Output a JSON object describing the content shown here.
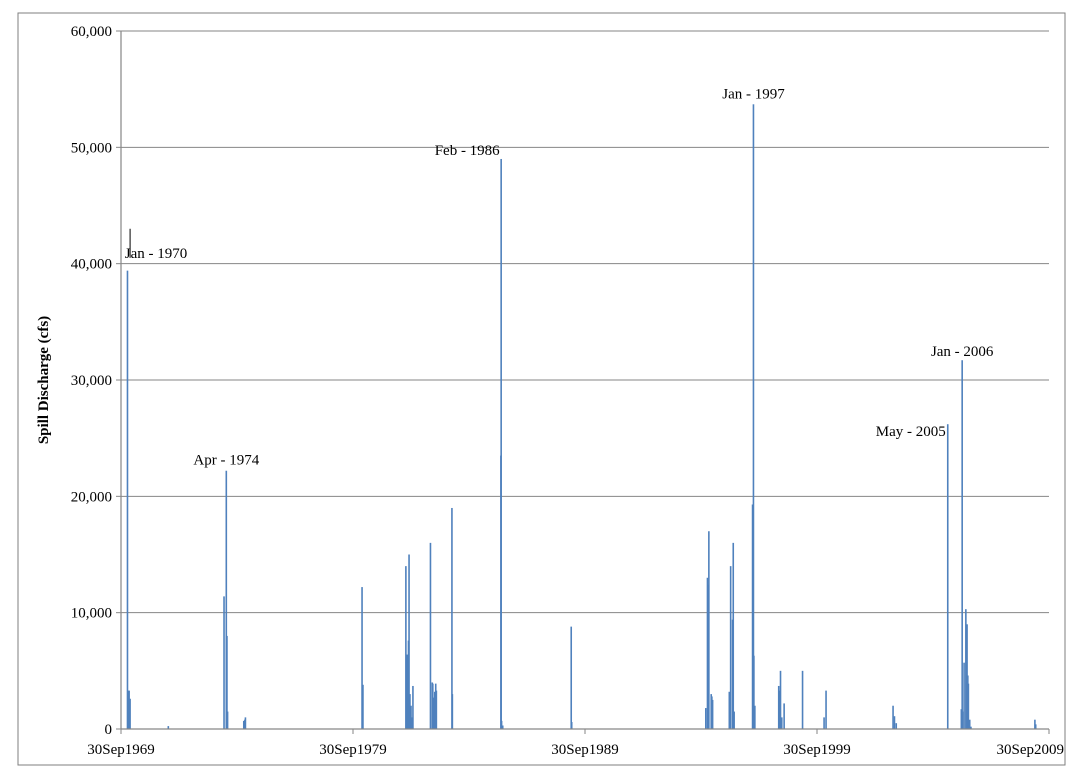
{
  "chart_data": {
    "type": "bar",
    "title": "",
    "xlabel": "",
    "ylabel": "Spill Discharge (cfs)",
    "ylim": [
      0,
      60000
    ],
    "xlim": [
      "1969-09-30",
      "2009-09-30"
    ],
    "grid": true,
    "legend": "none",
    "colors": {
      "bars": "#4f81bd",
      "grid": "#868686",
      "axis": "#868686"
    },
    "x_ticks": [
      "30Sep1969",
      "30Sep1979",
      "30Sep1989",
      "30Sep1999",
      "30Sep2009"
    ],
    "y_ticks": [
      "0",
      "10,000",
      "20,000",
      "30,000",
      "40,000",
      "50,000",
      "60,000"
    ],
    "y_tick_values": [
      0,
      10000,
      20000,
      30000,
      40000,
      50000,
      60000
    ],
    "annotations": [
      {
        "text": "Jan - 1970",
        "date": "1970-01-15",
        "value": 39400
      },
      {
        "text": "Apr - 1974",
        "date": "1974-04-15",
        "value": 22200
      },
      {
        "text": "Feb - 1986",
        "date": "1986-02-18",
        "value": 49000
      },
      {
        "text": "Jan - 1997",
        "date": "1997-01-03",
        "value": 53700
      },
      {
        "text": "May - 2005",
        "date": "2005-05-20",
        "value": 26200
      },
      {
        "text": "Jan - 2006",
        "date": "2006-01-02",
        "value": 31700
      }
    ],
    "series": [
      {
        "x": [
          "1970-01-10",
          "1970-01-15",
          "1970-01-22",
          "1970-02-05",
          "1970-02-20",
          "1971-10-15",
          "1974-03-10",
          "1974-04-15",
          "1974-04-25",
          "1974-05-05",
          "1975-01-15",
          "1975-02-01",
          "1975-02-10",
          "1980-02-20",
          "1980-03-05",
          "1982-01-10",
          "1982-02-01",
          "1982-02-20",
          "1982-03-01",
          "1982-03-15",
          "1982-04-01",
          "1982-04-15",
          "1982-05-01",
          "1983-02-01",
          "1983-03-01",
          "1983-03-10",
          "1983-03-25",
          "1983-04-10",
          "1983-04-25",
          "1983-05-05",
          "1984-01-05",
          "1984-01-12",
          "1986-02-14",
          "1986-02-18",
          "1986-02-25",
          "1986-03-15",
          "1989-02-25",
          "1989-03-05",
          "1994-12-15",
          "1995-01-10",
          "1995-01-20",
          "1995-02-01",
          "1995-03-10",
          "1995-03-20",
          "1995-04-01",
          "1995-12-20",
          "1996-01-10",
          "1996-02-10",
          "1996-02-20",
          "1996-03-05",
          "1996-12-20",
          "1997-01-03",
          "1997-01-10",
          "1997-01-25",
          "1998-02-05",
          "1998-02-20",
          "1998-03-05",
          "1998-03-25",
          "1998-05-01",
          "1999-02-15",
          "2000-01-20",
          "2000-02-20",
          "2003-01-10",
          "2003-02-01",
          "2003-03-01",
          "2005-05-20",
          "2005-12-20",
          "2006-01-02",
          "2006-01-08",
          "2006-02-01",
          "2006-03-01",
          "2006-03-20",
          "2006-04-01",
          "2006-04-10",
          "2006-05-01",
          "2006-05-20",
          "2009-02-20",
          "2009-03-05"
        ],
        "values": [
          39400,
          2500,
          3300,
          3300,
          2600,
          250,
          11400,
          22200,
          8000,
          1500,
          700,
          800,
          1000,
          12200,
          3800,
          14000,
          6400,
          7600,
          15000,
          3000,
          2000,
          1000,
          3700,
          16000,
          4000,
          3900,
          2700,
          3200,
          3900,
          3300,
          19000,
          3000,
          23500,
          49000,
          700,
          300,
          8800,
          600,
          1800,
          13000,
          12400,
          17000,
          3000,
          2800,
          2500,
          3200,
          14000,
          9400,
          16000,
          1500,
          19300,
          53700,
          6300,
          2000,
          3700,
          3300,
          5000,
          1000,
          2200,
          5000,
          1000,
          3300,
          2000,
          1100,
          500,
          26200,
          1700,
          31700,
          1500,
          5700,
          10300,
          9000,
          4600,
          3900,
          800,
          200,
          800,
          400
        ]
      }
    ]
  }
}
